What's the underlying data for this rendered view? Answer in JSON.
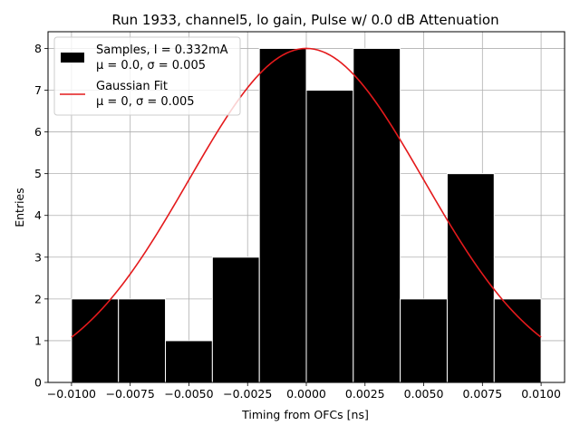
{
  "chart_data": {
    "type": "bar",
    "title": "Run 1933, channel5, lo gain, Pulse w/ 0.0 dB Attenuation",
    "xlabel": "Timing from OFCs [ns]",
    "ylabel": "Entries",
    "xlim": [
      -0.011,
      0.011
    ],
    "ylim": [
      0,
      8.4
    ],
    "grid": true,
    "legend_position": "top-left",
    "x_ticks": [
      -0.01,
      -0.0075,
      -0.005,
      -0.0025,
      0.0,
      0.0025,
      0.005,
      0.0075,
      0.01
    ],
    "x_tick_labels": [
      "−0.0100",
      "−0.0075",
      "−0.0050",
      "−0.0025",
      "0.0000",
      "0.0025",
      "0.0050",
      "0.0075",
      "0.0100"
    ],
    "y_ticks": [
      0,
      1,
      2,
      3,
      4,
      5,
      6,
      7,
      8
    ],
    "y_tick_labels": [
      "0",
      "1",
      "2",
      "3",
      "4",
      "5",
      "6",
      "7",
      "8"
    ],
    "histogram": {
      "name_line1": "Samples, I = 0.332mA",
      "name_line2": "μ = 0.0, σ = 0.005",
      "color": "#000000",
      "edge_color": "#ffffff",
      "bin_edges": [
        -0.01,
        -0.008,
        -0.006,
        -0.004,
        -0.002,
        0.0,
        0.002,
        0.004,
        0.006,
        0.008,
        0.01
      ],
      "counts": [
        2,
        2,
        1,
        3,
        8,
        7,
        8,
        2,
        5,
        2
      ]
    },
    "fit": {
      "name_line1": "Gaussian Fit",
      "name_line2": "μ = 0, σ = 0.005",
      "color": "#e41a1c",
      "mu": 0.0,
      "sigma": 0.005,
      "amplitude": 8.0,
      "x_range": [
        -0.01,
        0.01
      ]
    }
  }
}
